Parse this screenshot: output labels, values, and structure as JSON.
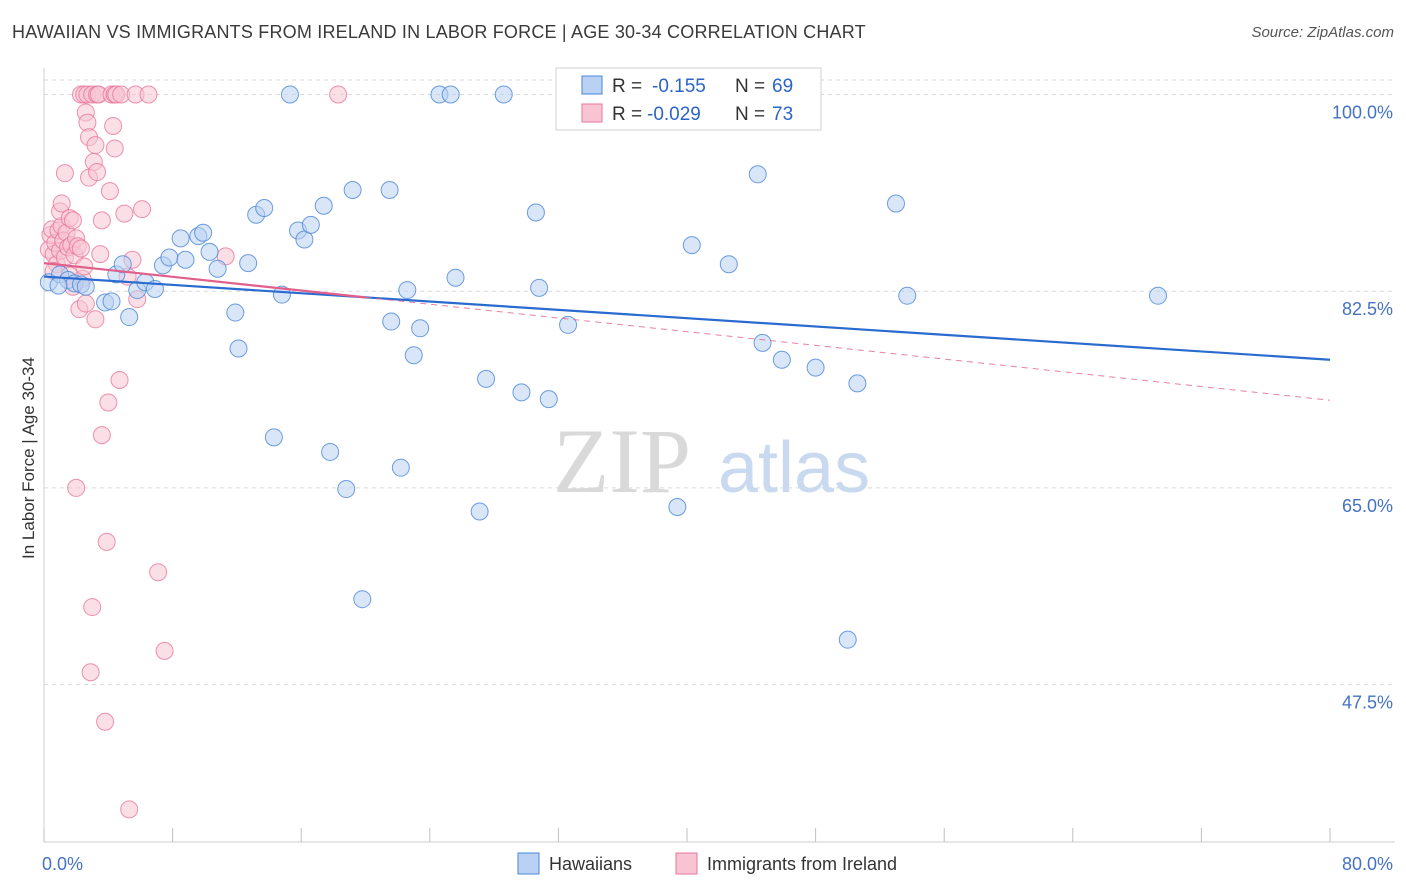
{
  "title": "HAWAIIAN VS IMMIGRANTS FROM IRELAND IN LABOR FORCE | AGE 30-34 CORRELATION CHART",
  "source": "Source: ZipAtlas.com",
  "watermark": {
    "zip": "ZIP",
    "atlas": "atlas"
  },
  "colors": {
    "blue": "#4a86d8",
    "blue_fill": "#b9d1f3",
    "blue_line": "#2a6bd0",
    "pink": "#e8779b",
    "pink_fill": "#f8c4d4",
    "pink_line": "#e0608a",
    "grid": "#d9d9d9",
    "axis_text": "#4472c4"
  },
  "legend": {
    "rows": [
      {
        "r_label": "R =",
        "r_value": "-0.155",
        "n_label": "N =",
        "n_value": "69"
      },
      {
        "r_label": "R =",
        "r_value": "-0.029",
        "n_label": "N =",
        "n_value": "73"
      }
    ]
  },
  "bottom_legend": {
    "series1": "Hawaiians",
    "series2": "Immigrants from Ireland"
  },
  "chart_data": {
    "type": "scatter",
    "title": "HAWAIIAN VS IMMIGRANTS FROM IRELAND IN LABOR FORCE | AGE 30-34 CORRELATION CHART",
    "xlabel": "",
    "ylabel": "In Labor Force | Age 30-34",
    "xlim": [
      0,
      80
    ],
    "ylim": [
      33.5,
      102
    ],
    "x_tick_labels": [
      "0.0%",
      "80.0%"
    ],
    "y_ticks": [
      47.5,
      65.0,
      82.5,
      100.0
    ],
    "y_tick_labels": [
      "47.5%",
      "65.0%",
      "82.5%",
      "100.0%"
    ],
    "grid": true,
    "series": [
      {
        "name": "Hawaiians",
        "r": -0.155,
        "n": 69,
        "trend": {
          "x0": 0,
          "y0": 83.8,
          "x1": 80,
          "y1": 76.4
        },
        "points": [
          [
            0.3,
            83.3
          ],
          [
            1.0,
            84.0
          ],
          [
            1.5,
            83.5
          ],
          [
            1.9,
            83.2
          ],
          [
            2.3,
            83.1
          ],
          [
            4.5,
            84.0
          ],
          [
            4.9,
            84.9
          ],
          [
            3.8,
            81.5
          ],
          [
            4.2,
            81.6
          ],
          [
            5.3,
            80.2
          ],
          [
            5.8,
            82.6
          ],
          [
            6.3,
            83.3
          ],
          [
            6.9,
            82.7
          ],
          [
            7.4,
            84.8
          ],
          [
            7.8,
            85.5
          ],
          [
            8.5,
            87.2
          ],
          [
            8.8,
            85.3
          ],
          [
            9.6,
            87.4
          ],
          [
            9.9,
            87.7
          ],
          [
            10.3,
            86.0
          ],
          [
            10.8,
            84.5
          ],
          [
            11.9,
            80.6
          ],
          [
            12.1,
            77.4
          ],
          [
            12.7,
            85.0
          ],
          [
            13.2,
            89.3
          ],
          [
            13.7,
            89.9
          ],
          [
            14.3,
            69.5
          ],
          [
            14.8,
            82.2
          ],
          [
            15.3,
            100.0
          ],
          [
            15.8,
            87.9
          ],
          [
            16.2,
            87.1
          ],
          [
            16.6,
            88.4
          ],
          [
            17.4,
            90.1
          ],
          [
            17.8,
            68.2
          ],
          [
            18.8,
            64.9
          ],
          [
            19.2,
            91.5
          ],
          [
            19.8,
            55.1
          ],
          [
            21.5,
            91.5
          ],
          [
            21.6,
            79.8
          ],
          [
            22.2,
            66.8
          ],
          [
            22.6,
            82.6
          ],
          [
            23.4,
            79.2
          ],
          [
            23.0,
            76.8
          ],
          [
            24.6,
            100.0
          ],
          [
            25.3,
            100.0
          ],
          [
            25.6,
            83.7
          ],
          [
            27.1,
            62.9
          ],
          [
            27.5,
            74.7
          ],
          [
            28.6,
            100.0
          ],
          [
            29.7,
            73.5
          ],
          [
            30.6,
            89.5
          ],
          [
            30.8,
            82.8
          ],
          [
            31.4,
            72.9
          ],
          [
            32.6,
            79.5
          ],
          [
            33.4,
            100.0
          ],
          [
            39.4,
            63.3
          ],
          [
            40.3,
            86.6
          ],
          [
            42.6,
            84.9
          ],
          [
            44.4,
            92.9
          ],
          [
            44.7,
            77.9
          ],
          [
            45.9,
            76.4
          ],
          [
            48.0,
            75.7
          ],
          [
            50.0,
            51.5
          ],
          [
            50.6,
            74.3
          ],
          [
            53.0,
            90.3
          ],
          [
            53.7,
            82.1
          ],
          [
            69.3,
            82.1
          ],
          [
            0.9,
            83.0
          ],
          [
            2.6,
            82.9
          ]
        ]
      },
      {
        "name": "Immigrants from Ireland",
        "r": -0.029,
        "n": 73,
        "trend": {
          "x0": 0,
          "y0": 85.0,
          "x1": 80,
          "y1": 72.8
        },
        "trend_solid_to_x": 20,
        "points": [
          [
            0.3,
            86.2
          ],
          [
            0.4,
            87.5
          ],
          [
            0.5,
            88.0
          ],
          [
            0.6,
            85.8
          ],
          [
            0.7,
            86.8
          ],
          [
            0.8,
            84.9
          ],
          [
            0.9,
            87.9
          ],
          [
            1.0,
            86.1
          ],
          [
            1.1,
            88.3
          ],
          [
            1.2,
            87.0
          ],
          [
            1.3,
            85.5
          ],
          [
            1.4,
            87.7
          ],
          [
            1.5,
            86.4
          ],
          [
            1.6,
            83.9
          ],
          [
            1.7,
            86.6
          ],
          [
            1.8,
            82.9
          ],
          [
            1.9,
            85.7
          ],
          [
            2.0,
            87.2
          ],
          [
            2.1,
            86.5
          ],
          [
            2.2,
            80.9
          ],
          [
            2.3,
            86.3
          ],
          [
            2.4,
            83.6
          ],
          [
            2.5,
            84.7
          ],
          [
            2.6,
            81.4
          ],
          [
            1.0,
            89.6
          ],
          [
            1.1,
            90.3
          ],
          [
            1.3,
            93.0
          ],
          [
            1.6,
            89.0
          ],
          [
            1.8,
            88.8
          ],
          [
            2.0,
            65.0
          ],
          [
            2.3,
            100.0
          ],
          [
            2.5,
            100.0
          ],
          [
            2.6,
            98.4
          ],
          [
            2.7,
            97.5
          ],
          [
            2.7,
            100.0
          ],
          [
            2.8,
            96.2
          ],
          [
            2.8,
            92.6
          ],
          [
            2.9,
            48.6
          ],
          [
            3.0,
            54.4
          ],
          [
            3.0,
            100.0
          ],
          [
            3.1,
            94.0
          ],
          [
            3.2,
            95.5
          ],
          [
            3.2,
            80.0
          ],
          [
            3.3,
            93.1
          ],
          [
            3.3,
            100.0
          ],
          [
            3.4,
            100.0
          ],
          [
            3.5,
            85.8
          ],
          [
            3.6,
            88.8
          ],
          [
            3.6,
            69.7
          ],
          [
            3.8,
            44.2
          ],
          [
            3.9,
            60.2
          ],
          [
            4.0,
            72.6
          ],
          [
            4.1,
            91.4
          ],
          [
            4.2,
            100.0
          ],
          [
            4.3,
            97.2
          ],
          [
            4.4,
            100.0
          ],
          [
            4.4,
            95.2
          ],
          [
            4.5,
            100.0
          ],
          [
            4.7,
            74.6
          ],
          [
            4.8,
            100.0
          ],
          [
            5.0,
            89.4
          ],
          [
            5.2,
            83.8
          ],
          [
            5.3,
            36.4
          ],
          [
            5.5,
            85.3
          ],
          [
            5.8,
            81.8
          ],
          [
            5.7,
            100.0
          ],
          [
            6.5,
            100.0
          ],
          [
            6.1,
            89.8
          ],
          [
            7.1,
            57.5
          ],
          [
            7.5,
            50.5
          ],
          [
            11.3,
            85.6
          ],
          [
            18.3,
            100.0
          ],
          [
            0.6,
            84.3
          ]
        ]
      }
    ]
  }
}
